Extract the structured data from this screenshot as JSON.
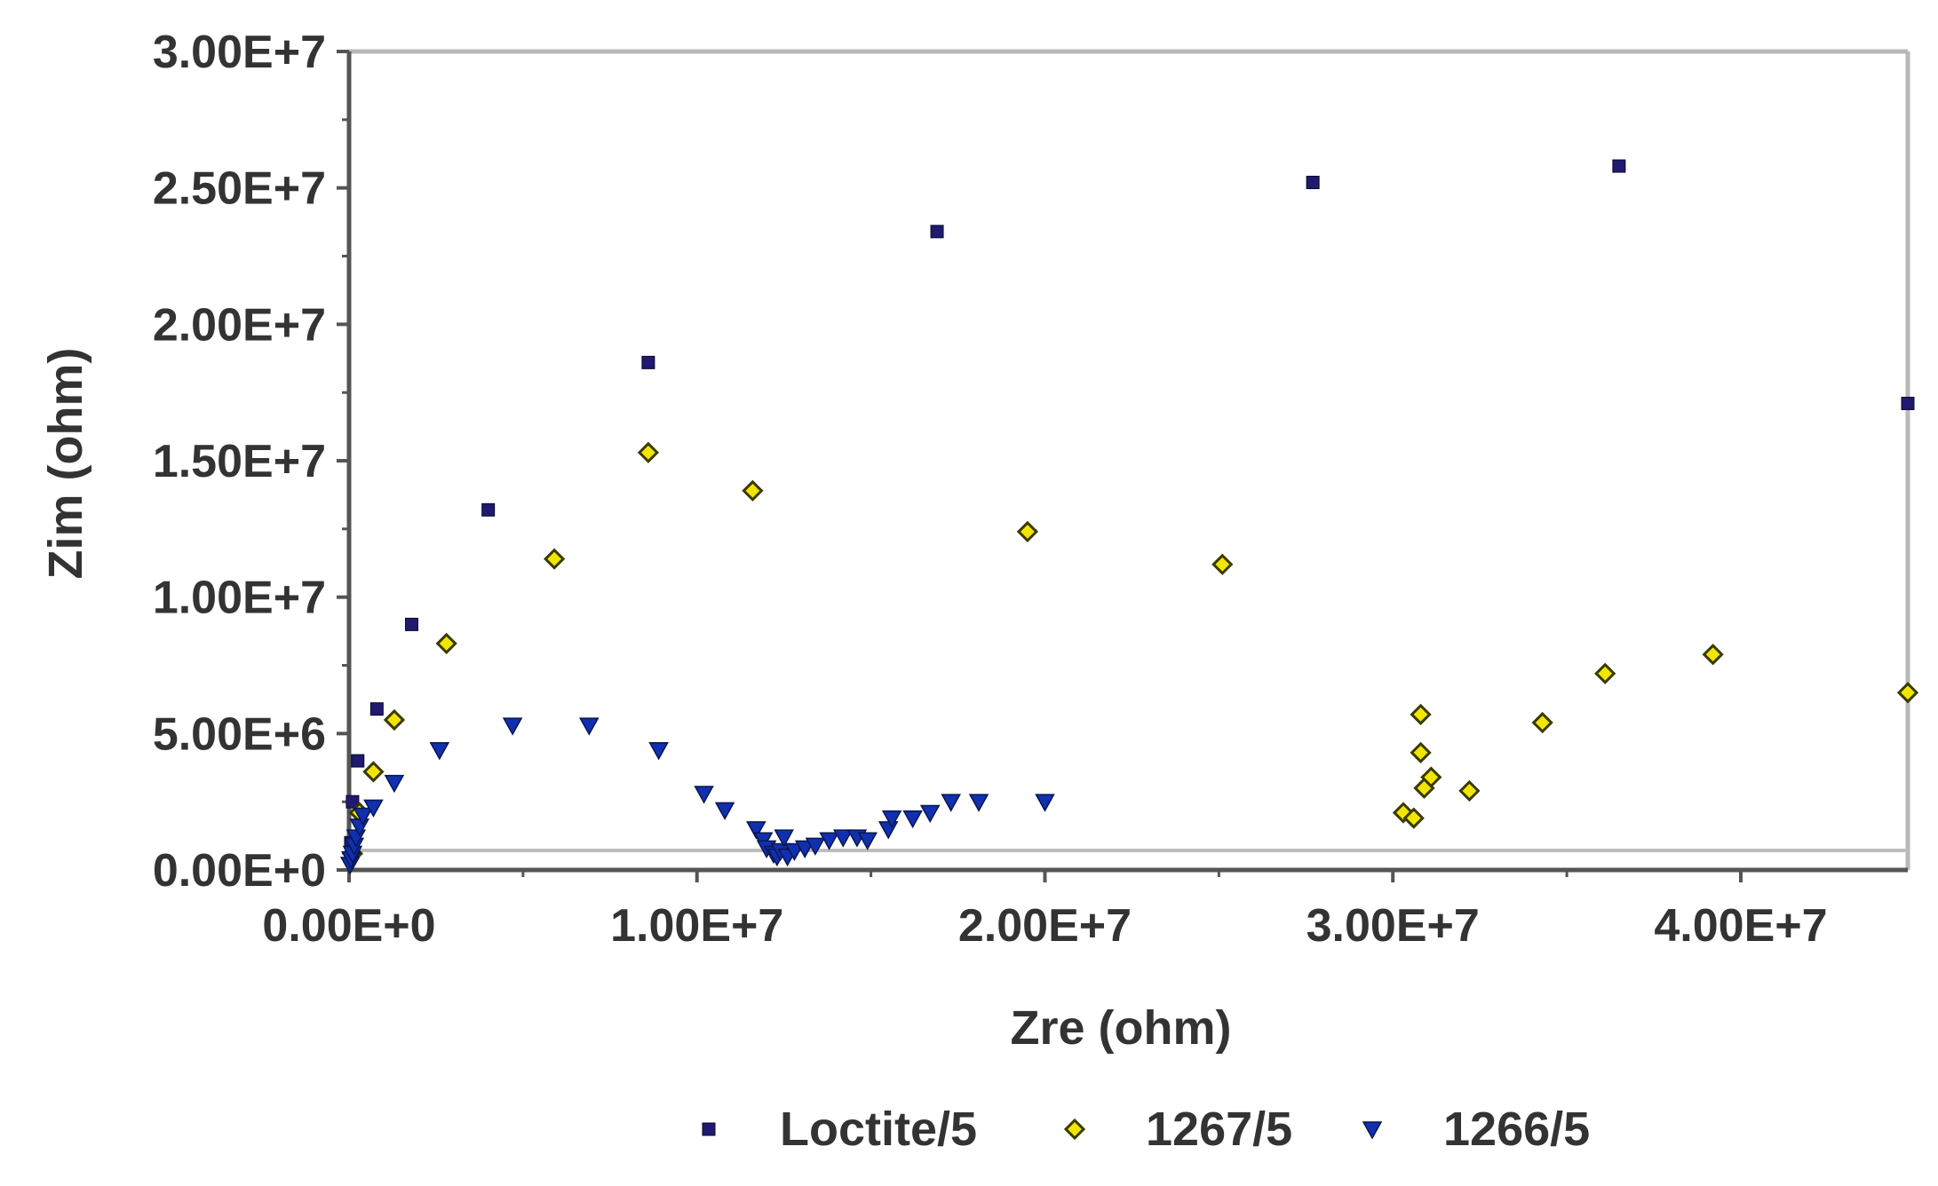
{
  "chart_data": {
    "type": "scatter",
    "xlabel": "Zre (ohm)",
    "ylabel": "Zim (ohm)",
    "xlim": [
      0,
      44800000
    ],
    "ylim": [
      0,
      30000000
    ],
    "x_ticks": [
      0,
      10000000,
      20000000,
      30000000,
      40000000
    ],
    "x_tick_labels": [
      "0.00E+0",
      "1.00E+7",
      "2.00E+7",
      "3.00E+7",
      "4.00E+7"
    ],
    "y_ticks": [
      0,
      5000000,
      10000000,
      15000000,
      20000000,
      25000000,
      30000000
    ],
    "y_tick_labels": [
      "0.00E+0",
      "5.00E+6",
      "1.00E+7",
      "1.50E+7",
      "2.00E+7",
      "2.50E+7",
      "3.00E+7"
    ],
    "grid": false,
    "legend_position": "bottom",
    "series": [
      {
        "name": "Loctite/5",
        "marker": "square",
        "color": "#1f1a6e",
        "points": [
          [
            50000,
            1000000
          ],
          [
            100000,
            2500000
          ],
          [
            250000,
            4000000
          ],
          [
            800000,
            5900000
          ],
          [
            1800000,
            9000000
          ],
          [
            4000000,
            13200000
          ],
          [
            8600000,
            18600000
          ],
          [
            16900000,
            23400000
          ],
          [
            27700000,
            25200000
          ],
          [
            36500000,
            25800000
          ],
          [
            44800000,
            17100000
          ]
        ]
      },
      {
        "name": "1267/5",
        "marker": "diamond",
        "color": "#f2e600",
        "points": [
          [
            100000,
            600000
          ],
          [
            300000,
            2100000
          ],
          [
            700000,
            3600000
          ],
          [
            1300000,
            5500000
          ],
          [
            2800000,
            8300000
          ],
          [
            5900000,
            11400000
          ],
          [
            8600000,
            15300000
          ],
          [
            11600000,
            13900000
          ],
          [
            19500000,
            12400000
          ],
          [
            25100000,
            11200000
          ],
          [
            30300000,
            2100000
          ],
          [
            30600000,
            1900000
          ],
          [
            30900000,
            3000000
          ],
          [
            31100000,
            3400000
          ],
          [
            30800000,
            4300000
          ],
          [
            30800000,
            5700000
          ],
          [
            32200000,
            2900000
          ],
          [
            34300000,
            5400000
          ],
          [
            36100000,
            7200000
          ],
          [
            39200000,
            7900000
          ],
          [
            44800000,
            6500000
          ]
        ]
      },
      {
        "name": "1266/5",
        "marker": "triangle-down",
        "color": "#1030b0",
        "points": [
          [
            30000,
            200000
          ],
          [
            60000,
            400000
          ],
          [
            100000,
            600000
          ],
          [
            150000,
            900000
          ],
          [
            200000,
            1200000
          ],
          [
            300000,
            1600000
          ],
          [
            400000,
            2000000
          ],
          [
            700000,
            2300000
          ],
          [
            1300000,
            3200000
          ],
          [
            2600000,
            4400000
          ],
          [
            4700000,
            5300000
          ],
          [
            6900000,
            5300000
          ],
          [
            8900000,
            4400000
          ],
          [
            10200000,
            2800000
          ],
          [
            10800000,
            2200000
          ],
          [
            11700000,
            1500000
          ],
          [
            11900000,
            1100000
          ],
          [
            12000000,
            800000
          ],
          [
            12200000,
            600000
          ],
          [
            12300000,
            500000
          ],
          [
            12400000,
            700000
          ],
          [
            12500000,
            1200000
          ],
          [
            12600000,
            500000
          ],
          [
            12800000,
            700000
          ],
          [
            13100000,
            800000
          ],
          [
            13400000,
            900000
          ],
          [
            13800000,
            1100000
          ],
          [
            14200000,
            1200000
          ],
          [
            14600000,
            1200000
          ],
          [
            14900000,
            1100000
          ],
          [
            15500000,
            1500000
          ],
          [
            15600000,
            1900000
          ],
          [
            16200000,
            1900000
          ],
          [
            16700000,
            2100000
          ],
          [
            17300000,
            2500000
          ],
          [
            18100000,
            2500000
          ],
          [
            20000000,
            2500000
          ]
        ]
      }
    ]
  }
}
